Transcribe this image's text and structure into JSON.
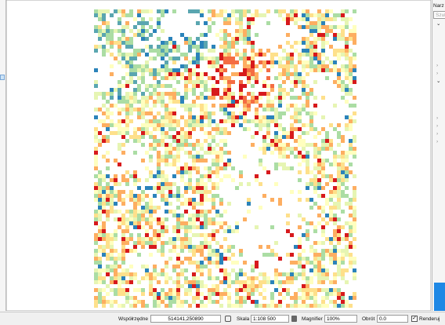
{
  "right_panel": {
    "title": "Narz",
    "search": "Szuk"
  },
  "status_bar": {
    "coordinates_label": "Współrzędne",
    "coordinates": "514141,250890",
    "scale_label": "Skala",
    "scale": "1:108 500",
    "magnifier_label": "Magnifier",
    "magnifier": "100%",
    "rotation_label": "Obrót",
    "rotation": "0.0",
    "render_label": "Renderuj"
  }
}
